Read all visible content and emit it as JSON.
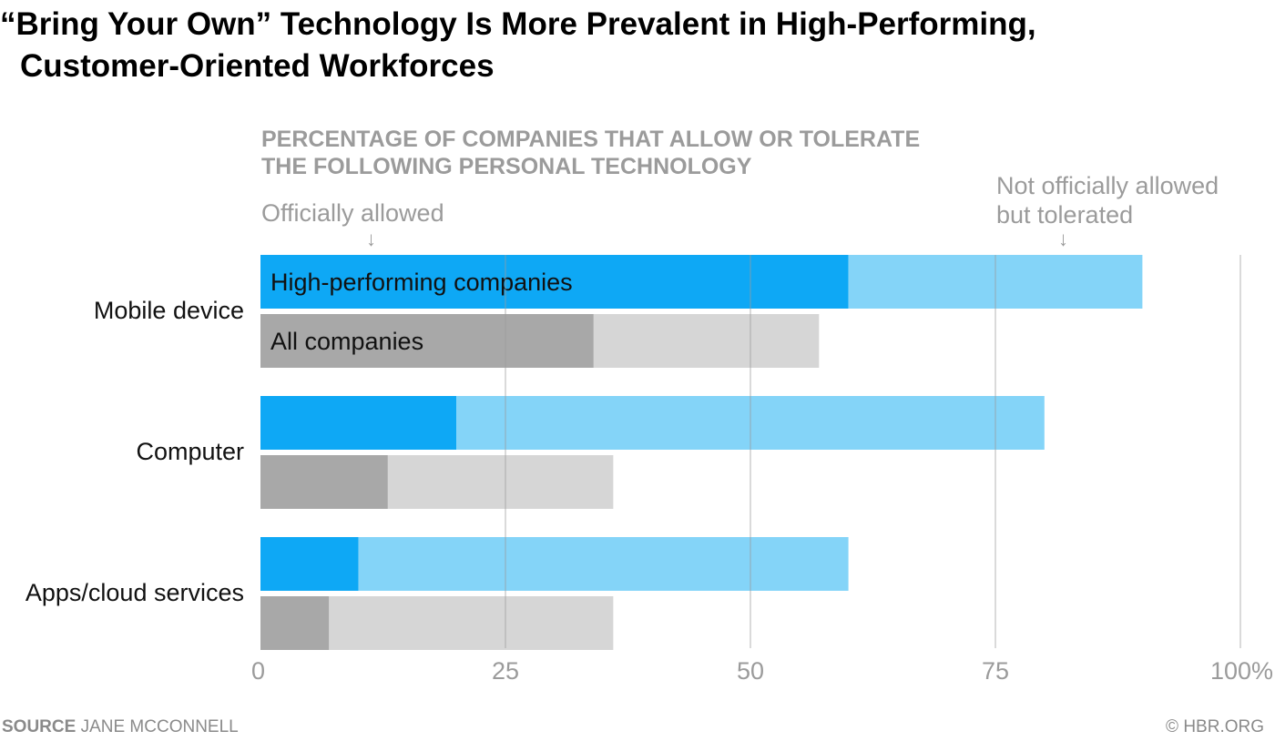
{
  "header": {
    "title_line1": "“Bring Your Own” Technology Is More Prevalent in High-Performing,",
    "title_line2": "Customer-Oriented Workforces",
    "subtitle_line1": "PERCENTAGE OF COMPANIES THAT ALLOW OR TOLERATE",
    "subtitle_line2": "THE FOLLOWING PERSONAL TECHNOLOGY"
  },
  "annotations": {
    "officially_allowed": "Officially allowed",
    "tolerated_line1": "Not officially allowed",
    "tolerated_line2": "but tolerated",
    "arrow_glyph": "↓"
  },
  "footer": {
    "source_label": "SOURCE",
    "source_text": "JANE MCCONNELL",
    "credit": "© HBR.ORG"
  },
  "chart_data": {
    "type": "bar",
    "orientation": "horizontal",
    "stacked": true,
    "categories": [
      "Mobile device",
      "Computer",
      "Apps/cloud services"
    ],
    "groups": [
      {
        "name": "High-performing companies",
        "colors": {
          "allowed": "#0ea8f5",
          "tolerated": "#84d4f8"
        },
        "allowed": [
          60,
          20,
          10
        ],
        "tolerated": [
          30,
          60,
          50
        ]
      },
      {
        "name": "All companies",
        "colors": {
          "allowed": "#a8a8a8",
          "tolerated": "#d6d6d6"
        },
        "allowed": [
          34,
          13,
          7
        ],
        "tolerated": [
          23,
          23,
          29
        ]
      }
    ],
    "segments": [
      "Officially allowed",
      "Not officially allowed but tolerated"
    ],
    "xlim": [
      0,
      100
    ],
    "xticks": [
      "0",
      "25",
      "50",
      "75",
      "100%"
    ],
    "xtick_values": [
      0,
      25,
      50,
      75,
      100
    ],
    "grid": true,
    "gridline_color": "#9b9b9b",
    "label_color": "#9b9b9b"
  }
}
